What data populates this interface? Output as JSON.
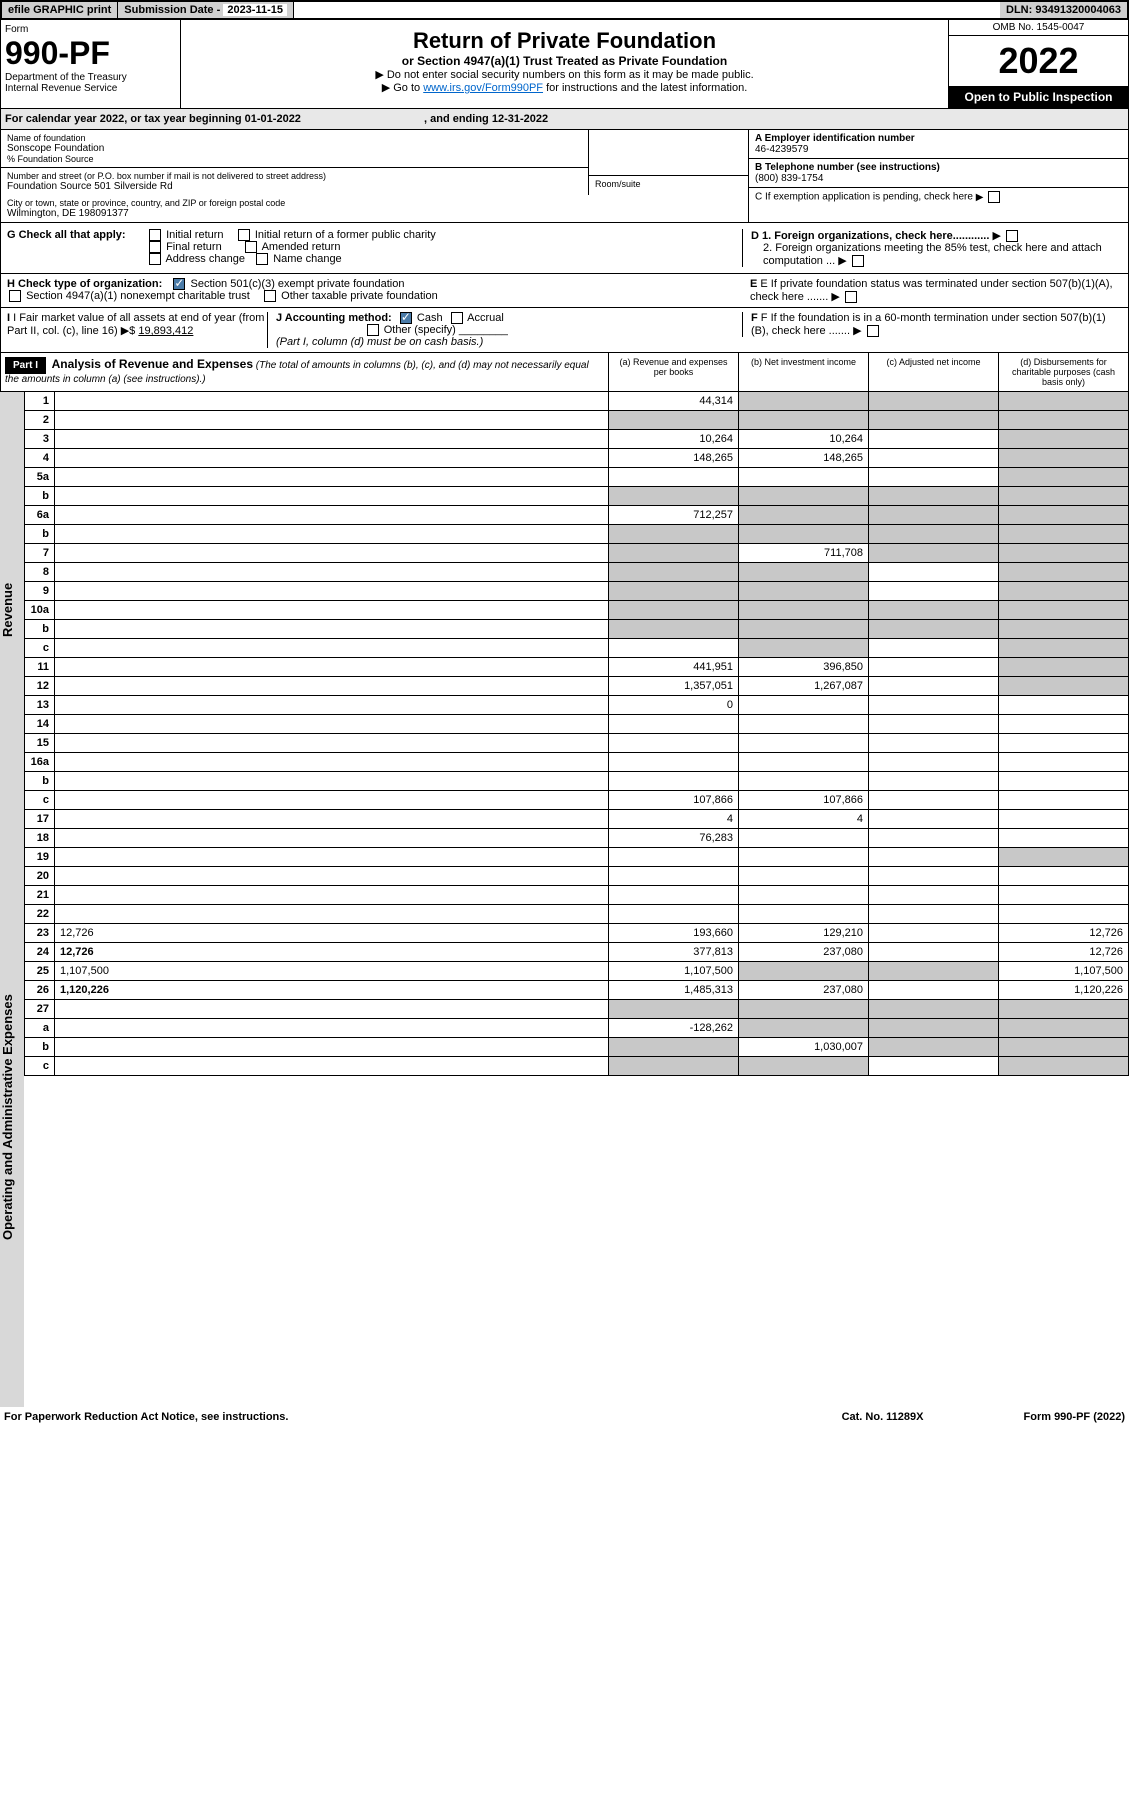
{
  "topbar": {
    "efile": "efile GRAPHIC print",
    "sub_label": "Submission Date - ",
    "sub_date": "2023-11-15",
    "dln_label": "DLN: ",
    "dln": "93491320004063"
  },
  "header": {
    "form_label": "Form",
    "form_num": "990-PF",
    "dept": "Department of the Treasury",
    "irs": "Internal Revenue Service",
    "title": "Return of Private Foundation",
    "subtitle": "or Section 4947(a)(1) Trust Treated as Private Foundation",
    "instr1": "▶ Do not enter social security numbers on this form as it may be made public.",
    "instr2_pre": "▶ Go to ",
    "instr2_link": "www.irs.gov/Form990PF",
    "instr2_post": " for instructions and the latest information.",
    "omb": "OMB No. 1545-0047",
    "year": "2022",
    "open": "Open to Public Inspection"
  },
  "calyear": {
    "text_pre": "For calendar year 2022, or tax year beginning ",
    "begin": "01-01-2022",
    "text_mid": ", and ending ",
    "end": "12-31-2022"
  },
  "info": {
    "name_lbl": "Name of foundation",
    "name": "Sonscope Foundation",
    "care_lbl": "% Foundation Source",
    "addr_lbl": "Number and street (or P.O. box number if mail is not delivered to street address)",
    "addr": "Foundation Source 501 Silverside Rd",
    "room_lbl": "Room/suite",
    "city_lbl": "City or town, state or province, country, and ZIP or foreign postal code",
    "city": "Wilmington, DE 198091377",
    "a_lbl": "A Employer identification number",
    "a_val": "46-4239579",
    "b_lbl": "B Telephone number (see instructions)",
    "b_val": "(800) 839-1754",
    "c_lbl": "C If exemption application is pending, check here",
    "d1_lbl": "D 1. Foreign organizations, check here............",
    "d2_lbl": "2. Foreign organizations meeting the 85% test, check here and attach computation ...",
    "e_lbl": "E If private foundation status was terminated under section 507(b)(1)(A), check here .......",
    "f_lbl": "F If the foundation is in a 60-month termination under section 507(b)(1)(B), check here ......."
  },
  "checks": {
    "g_lbl": "G Check all that apply:",
    "g_opts": [
      "Initial return",
      "Initial return of a former public charity",
      "Final return",
      "Amended return",
      "Address change",
      "Name change"
    ],
    "h_lbl": "H Check type of organization:",
    "h1": "Section 501(c)(3) exempt private foundation",
    "h2": "Section 4947(a)(1) nonexempt charitable trust",
    "h3": "Other taxable private foundation",
    "i_lbl": "I Fair market value of all assets at end of year (from Part II, col. (c), line 16) ▶$ ",
    "i_val": "19,893,412",
    "j_lbl": "J Accounting method:",
    "j_cash": "Cash",
    "j_accr": "Accrual",
    "j_other": "Other (specify)",
    "j_note": "(Part I, column (d) must be on cash basis.)"
  },
  "part1": {
    "hdr": "Part I",
    "title": "Analysis of Revenue and Expenses",
    "title_note": " (The total of amounts in columns (b), (c), and (d) may not necessarily equal the amounts in column (a) (see instructions).)",
    "col_a": "(a) Revenue and expenses per books",
    "col_b": "(b) Net investment income",
    "col_c": "(c) Adjusted net income",
    "col_d": "(d) Disbursements for charitable purposes (cash basis only)"
  },
  "side": {
    "revenue": "Revenue",
    "expenses": "Operating and Administrative Expenses"
  },
  "rows": [
    {
      "n": "1",
      "d": "",
      "a": "44,314",
      "b": "",
      "c": "",
      "shade_b": true,
      "shade_c": true,
      "shade_d": true
    },
    {
      "n": "2",
      "d": "",
      "a": "",
      "b": "",
      "c": "",
      "shade_a": true,
      "shade_b": true,
      "shade_c": true,
      "shade_d": true
    },
    {
      "n": "3",
      "d": "",
      "a": "10,264",
      "b": "10,264",
      "c": "",
      "shade_d": true
    },
    {
      "n": "4",
      "d": "",
      "a": "148,265",
      "b": "148,265",
      "c": "",
      "shade_d": true
    },
    {
      "n": "5a",
      "d": "",
      "a": "",
      "b": "",
      "c": "",
      "shade_d": true
    },
    {
      "n": "b",
      "d": "",
      "a": "",
      "b": "",
      "c": "",
      "shade_a": true,
      "shade_b": true,
      "shade_c": true,
      "shade_d": true
    },
    {
      "n": "6a",
      "d": "",
      "a": "712,257",
      "b": "",
      "c": "",
      "shade_b": true,
      "shade_c": true,
      "shade_d": true
    },
    {
      "n": "b",
      "d": "",
      "a": "",
      "b": "",
      "c": "",
      "shade_a": true,
      "shade_b": true,
      "shade_c": true,
      "shade_d": true
    },
    {
      "n": "7",
      "d": "",
      "a": "",
      "b": "711,708",
      "c": "",
      "shade_a": true,
      "shade_c": true,
      "shade_d": true
    },
    {
      "n": "8",
      "d": "",
      "a": "",
      "b": "",
      "c": "",
      "shade_a": true,
      "shade_b": true,
      "shade_d": true
    },
    {
      "n": "9",
      "d": "",
      "a": "",
      "b": "",
      "c": "",
      "shade_a": true,
      "shade_b": true,
      "shade_d": true
    },
    {
      "n": "10a",
      "d": "",
      "a": "",
      "b": "",
      "c": "",
      "shade_a": true,
      "shade_b": true,
      "shade_c": true,
      "shade_d": true
    },
    {
      "n": "b",
      "d": "",
      "a": "",
      "b": "",
      "c": "",
      "shade_a": true,
      "shade_b": true,
      "shade_c": true,
      "shade_d": true
    },
    {
      "n": "c",
      "d": "",
      "a": "",
      "b": "",
      "c": "",
      "shade_b": true,
      "shade_d": true
    },
    {
      "n": "11",
      "d": "",
      "a": "441,951",
      "b": "396,850",
      "c": "",
      "shade_d": true
    },
    {
      "n": "12",
      "d": "",
      "a": "1,357,051",
      "b": "1,267,087",
      "c": "",
      "bold": true,
      "shade_d": true
    },
    {
      "n": "13",
      "d": "",
      "a": "0",
      "b": "",
      "c": ""
    },
    {
      "n": "14",
      "d": "",
      "a": "",
      "b": "",
      "c": ""
    },
    {
      "n": "15",
      "d": "",
      "a": "",
      "b": "",
      "c": ""
    },
    {
      "n": "16a",
      "d": "",
      "a": "",
      "b": "",
      "c": ""
    },
    {
      "n": "b",
      "d": "",
      "a": "",
      "b": "",
      "c": ""
    },
    {
      "n": "c",
      "d": "",
      "a": "107,866",
      "b": "107,866",
      "c": ""
    },
    {
      "n": "17",
      "d": "",
      "a": "4",
      "b": "4",
      "c": ""
    },
    {
      "n": "18",
      "d": "",
      "a": "76,283",
      "b": "",
      "c": ""
    },
    {
      "n": "19",
      "d": "",
      "a": "",
      "b": "",
      "c": "",
      "shade_d": true
    },
    {
      "n": "20",
      "d": "",
      "a": "",
      "b": "",
      "c": ""
    },
    {
      "n": "21",
      "d": "",
      "a": "",
      "b": "",
      "c": ""
    },
    {
      "n": "22",
      "d": "",
      "a": "",
      "b": "",
      "c": ""
    },
    {
      "n": "23",
      "d": "12,726",
      "a": "193,660",
      "b": "129,210",
      "c": ""
    },
    {
      "n": "24",
      "d": "12,726",
      "a": "377,813",
      "b": "237,080",
      "c": "",
      "bold": true
    },
    {
      "n": "25",
      "d": "1,107,500",
      "a": "1,107,500",
      "b": "",
      "c": "",
      "shade_b": true,
      "shade_c": true
    },
    {
      "n": "26",
      "d": "1,120,226",
      "a": "1,485,313",
      "b": "237,080",
      "c": "",
      "bold": true
    },
    {
      "n": "27",
      "d": "",
      "a": "",
      "b": "",
      "c": "",
      "shade_a": true,
      "shade_b": true,
      "shade_c": true,
      "shade_d": true
    },
    {
      "n": "a",
      "d": "",
      "a": "-128,262",
      "b": "",
      "c": "",
      "bold": true,
      "shade_b": true,
      "shade_c": true,
      "shade_d": true
    },
    {
      "n": "b",
      "d": "",
      "a": "",
      "b": "1,030,007",
      "c": "",
      "bold": true,
      "shade_a": true,
      "shade_c": true,
      "shade_d": true
    },
    {
      "n": "c",
      "d": "",
      "a": "",
      "b": "",
      "c": "",
      "bold": true,
      "shade_a": true,
      "shade_b": true,
      "shade_d": true
    }
  ],
  "footer": {
    "left": "For Paperwork Reduction Act Notice, see instructions.",
    "mid": "Cat. No. 11289X",
    "right": "Form 990-PF (2022)"
  }
}
